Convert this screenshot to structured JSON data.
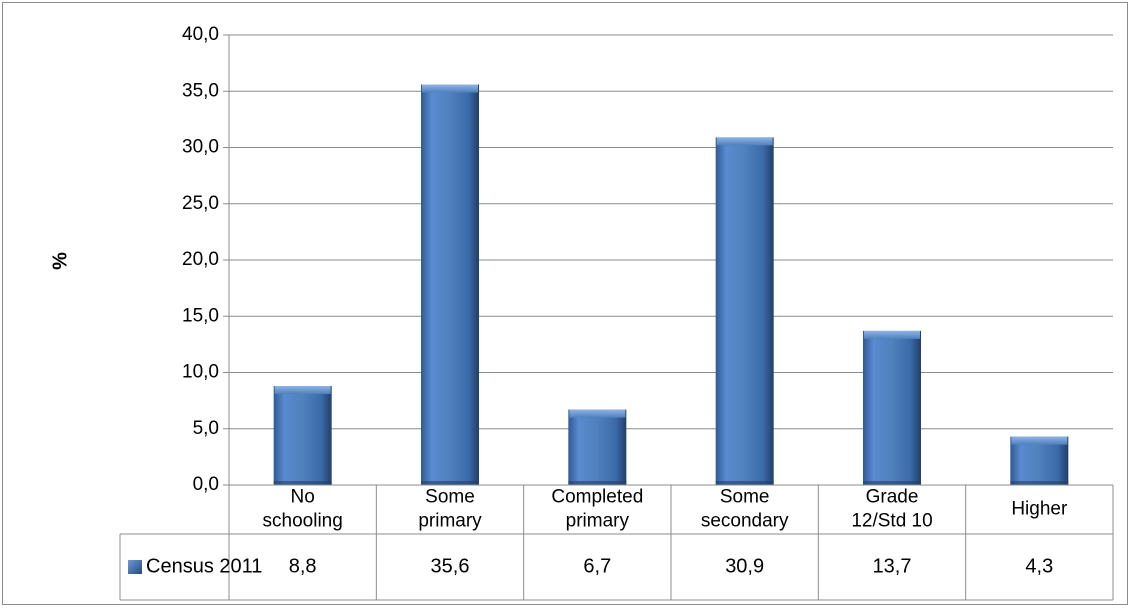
{
  "chart_data": {
    "type": "bar",
    "ylabel": "%",
    "ylim": [
      0,
      40
    ],
    "yticks": [
      "0,0",
      "5,0",
      "10,0",
      "15,0",
      "20,0",
      "25,0",
      "30,0",
      "35,0",
      "40,0"
    ],
    "categories": [
      [
        "No",
        "schooling"
      ],
      [
        "Some",
        "primary"
      ],
      [
        "Completed",
        "primary"
      ],
      [
        "Some",
        "secondary"
      ],
      [
        "Grade",
        "12/Std 10"
      ],
      [
        "Higher"
      ]
    ],
    "series": [
      {
        "name": "Census 2011",
        "values": [
          8.8,
          35.6,
          6.7,
          30.9,
          13.7,
          4.3
        ],
        "labels": [
          "8,8",
          "35,6",
          "6,7",
          "30,9",
          "13,7",
          "4,3"
        ],
        "color": "#4f81bd"
      }
    ],
    "grid": true,
    "legend": "data-table"
  }
}
